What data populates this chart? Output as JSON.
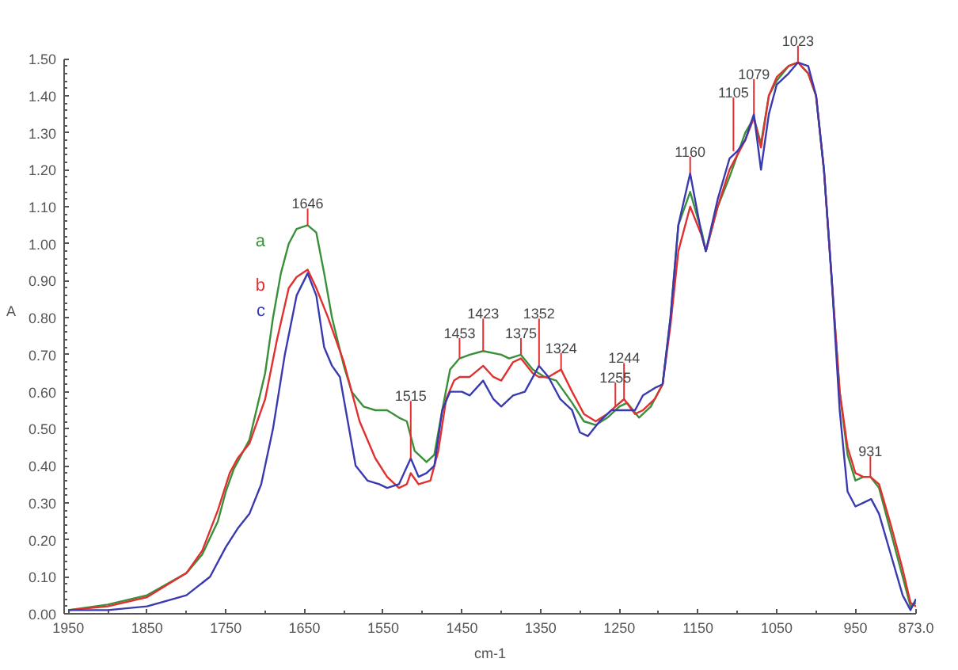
{
  "chart_data": {
    "type": "line",
    "xlabel": "cm-1",
    "ylabel": "A",
    "xlim": [
      1950,
      873
    ],
    "ylim": [
      0,
      1.5
    ],
    "xticks": [
      1950,
      1850,
      1750,
      1650,
      1550,
      1450,
      1350,
      1250,
      1150,
      1050,
      950,
      {
        "value": 873,
        "label": "873.0"
      }
    ],
    "yticks": [
      {
        "value": 0,
        "label": "0.00"
      },
      {
        "value": 0.1,
        "label": "0.10"
      },
      {
        "value": 0.2,
        "label": "0.20"
      },
      {
        "value": 0.3,
        "label": "0.30"
      },
      {
        "value": 0.4,
        "label": "0.40"
      },
      {
        "value": 0.5,
        "label": "0.50"
      },
      {
        "value": 0.6,
        "label": "0.60"
      },
      {
        "value": 0.7,
        "label": "0.70"
      },
      {
        "value": 0.8,
        "label": "0.80"
      },
      {
        "value": 0.9,
        "label": "0.90"
      },
      {
        "value": 1.0,
        "label": "1.00"
      },
      {
        "value": 1.1,
        "label": "1.10"
      },
      {
        "value": 1.2,
        "label": "1.20"
      },
      {
        "value": 1.3,
        "label": "1.30"
      },
      {
        "value": 1.4,
        "label": "1.40"
      },
      {
        "value": 1.5,
        "label": "1.50"
      }
    ],
    "grid": false,
    "legend": false,
    "marker": "none",
    "line_style": "solid",
    "series": [
      {
        "name": "a",
        "color": "#3a8f3a",
        "x": [
          1950,
          1900,
          1850,
          1800,
          1780,
          1760,
          1750,
          1740,
          1720,
          1700,
          1690,
          1680,
          1670,
          1660,
          1646,
          1635,
          1625,
          1615,
          1600,
          1590,
          1575,
          1560,
          1545,
          1530,
          1520,
          1510,
          1495,
          1485,
          1475,
          1465,
          1453,
          1440,
          1423,
          1400,
          1390,
          1375,
          1360,
          1345,
          1330,
          1310,
          1295,
          1280,
          1265,
          1250,
          1240,
          1225,
          1210,
          1195,
          1185,
          1175,
          1160,
          1145,
          1140,
          1125,
          1110,
          1100,
          1090,
          1079,
          1070,
          1060,
          1050,
          1035,
          1023,
          1010,
          1000,
          990,
          980,
          970,
          960,
          950,
          940,
          931,
          920,
          905,
          890,
          880,
          873
        ],
        "values": [
          0.01,
          0.025,
          0.05,
          0.11,
          0.16,
          0.25,
          0.33,
          0.39,
          0.47,
          0.65,
          0.8,
          0.92,
          1.0,
          1.04,
          1.05,
          1.03,
          0.92,
          0.8,
          0.67,
          0.6,
          0.56,
          0.55,
          0.55,
          0.53,
          0.52,
          0.44,
          0.41,
          0.43,
          0.55,
          0.66,
          0.69,
          0.7,
          0.71,
          0.7,
          0.69,
          0.7,
          0.66,
          0.64,
          0.63,
          0.57,
          0.52,
          0.51,
          0.53,
          0.56,
          0.57,
          0.53,
          0.56,
          0.62,
          0.8,
          1.05,
          1.14,
          1.03,
          0.98,
          1.1,
          1.18,
          1.24,
          1.3,
          1.34,
          1.27,
          1.4,
          1.44,
          1.48,
          1.49,
          1.46,
          1.4,
          1.2,
          0.9,
          0.6,
          0.43,
          0.36,
          0.37,
          0.37,
          0.34,
          0.22,
          0.1,
          0.02,
          0.03
        ]
      },
      {
        "name": "b",
        "color": "#e03030",
        "x": [
          1950,
          1900,
          1850,
          1800,
          1780,
          1760,
          1745,
          1735,
          1720,
          1700,
          1685,
          1670,
          1660,
          1646,
          1635,
          1620,
          1600,
          1580,
          1560,
          1545,
          1530,
          1520,
          1515,
          1505,
          1490,
          1480,
          1470,
          1460,
          1453,
          1440,
          1423,
          1410,
          1400,
          1385,
          1375,
          1360,
          1352,
          1340,
          1324,
          1310,
          1295,
          1280,
          1265,
          1255,
          1244,
          1230,
          1220,
          1205,
          1195,
          1185,
          1175,
          1160,
          1145,
          1140,
          1125,
          1110,
          1105,
          1090,
          1079,
          1070,
          1060,
          1050,
          1035,
          1023,
          1010,
          1000,
          990,
          980,
          970,
          960,
          950,
          940,
          931,
          920,
          905,
          890,
          880,
          873
        ],
        "values": [
          0.01,
          0.02,
          0.045,
          0.11,
          0.17,
          0.28,
          0.38,
          0.42,
          0.46,
          0.58,
          0.74,
          0.88,
          0.91,
          0.93,
          0.88,
          0.8,
          0.68,
          0.52,
          0.42,
          0.37,
          0.34,
          0.35,
          0.38,
          0.35,
          0.36,
          0.44,
          0.58,
          0.63,
          0.64,
          0.64,
          0.67,
          0.64,
          0.63,
          0.68,
          0.69,
          0.65,
          0.64,
          0.64,
          0.66,
          0.6,
          0.54,
          0.52,
          0.54,
          0.56,
          0.58,
          0.54,
          0.55,
          0.58,
          0.62,
          0.78,
          0.98,
          1.1,
          1.02,
          0.98,
          1.1,
          1.2,
          1.22,
          1.28,
          1.34,
          1.26,
          1.4,
          1.45,
          1.48,
          1.49,
          1.46,
          1.4,
          1.2,
          0.9,
          0.6,
          0.45,
          0.38,
          0.37,
          0.37,
          0.35,
          0.24,
          0.12,
          0.03,
          0.02
        ]
      },
      {
        "name": "c",
        "color": "#3a3ab0",
        "x": [
          1950,
          1900,
          1850,
          1800,
          1770,
          1750,
          1735,
          1720,
          1705,
          1690,
          1675,
          1660,
          1646,
          1635,
          1625,
          1615,
          1605,
          1595,
          1585,
          1570,
          1555,
          1545,
          1530,
          1515,
          1505,
          1495,
          1485,
          1475,
          1465,
          1450,
          1440,
          1423,
          1410,
          1400,
          1385,
          1370,
          1352,
          1340,
          1325,
          1310,
          1300,
          1290,
          1275,
          1260,
          1244,
          1230,
          1220,
          1205,
          1195,
          1185,
          1175,
          1160,
          1145,
          1140,
          1125,
          1110,
          1100,
          1090,
          1079,
          1070,
          1060,
          1050,
          1035,
          1023,
          1010,
          1000,
          990,
          980,
          970,
          960,
          950,
          940,
          930,
          920,
          905,
          890,
          880,
          873
        ],
        "values": [
          0.01,
          0.01,
          0.02,
          0.05,
          0.1,
          0.18,
          0.23,
          0.27,
          0.35,
          0.5,
          0.7,
          0.86,
          0.92,
          0.86,
          0.72,
          0.67,
          0.64,
          0.52,
          0.4,
          0.36,
          0.35,
          0.34,
          0.35,
          0.42,
          0.37,
          0.38,
          0.4,
          0.55,
          0.6,
          0.6,
          0.59,
          0.63,
          0.58,
          0.56,
          0.59,
          0.6,
          0.67,
          0.64,
          0.58,
          0.55,
          0.49,
          0.48,
          0.52,
          0.55,
          0.55,
          0.55,
          0.59,
          0.61,
          0.62,
          0.8,
          1.05,
          1.19,
          1.02,
          0.98,
          1.12,
          1.23,
          1.25,
          1.28,
          1.35,
          1.2,
          1.35,
          1.43,
          1.46,
          1.49,
          1.48,
          1.4,
          1.2,
          0.9,
          0.55,
          0.33,
          0.29,
          0.3,
          0.31,
          0.27,
          0.16,
          0.05,
          0.01,
          0.04
        ]
      }
    ],
    "annotations": [
      {
        "text": "1646",
        "x": 1646,
        "y": 1.05
      },
      {
        "text": "1515",
        "x": 1515,
        "y": 0.42
      },
      {
        "text": "1453",
        "x": 1453,
        "y": 0.69
      },
      {
        "text": "1423",
        "x": 1423,
        "y": 0.71
      },
      {
        "text": "1375",
        "x": 1375,
        "y": 0.7
      },
      {
        "text": "1352",
        "x": 1352,
        "y": 0.67
      },
      {
        "text": "1324",
        "x": 1324,
        "y": 0.66
      },
      {
        "text": "1255",
        "x": 1255,
        "y": 0.56
      },
      {
        "text": "1244",
        "x": 1244,
        "y": 0.58
      },
      {
        "text": "1160",
        "x": 1160,
        "y": 1.19
      },
      {
        "text": "1105",
        "x": 1105,
        "y": 1.25
      },
      {
        "text": "1079",
        "x": 1079,
        "y": 1.35
      },
      {
        "text": "1023",
        "x": 1023,
        "y": 1.49
      },
      {
        "text": "931",
        "x": 931,
        "y": 0.37
      }
    ]
  }
}
